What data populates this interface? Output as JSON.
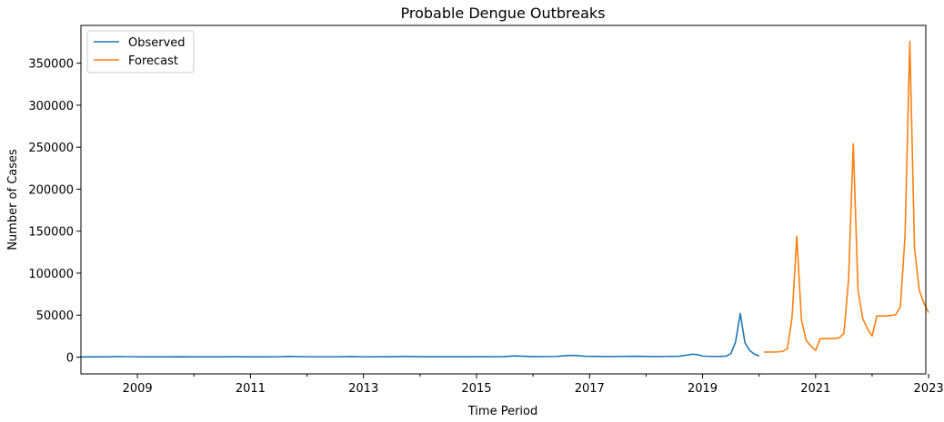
{
  "chart_data": {
    "type": "line",
    "title": "Probable Dengue Outbreaks",
    "xlabel": "Time Period",
    "ylabel": "Number of Cases",
    "xlim": [
      2008.0,
      2022.95
    ],
    "ylim": [
      -20000,
      395000
    ],
    "x_ticks": [
      2009,
      2011,
      2013,
      2015,
      2017,
      2019,
      2021,
      2023
    ],
    "x_minor_ticks": [
      2010,
      2012,
      2014,
      2016,
      2018,
      2020,
      2022
    ],
    "y_ticks": [
      0,
      50000,
      100000,
      150000,
      200000,
      250000,
      300000,
      350000
    ],
    "legend": {
      "position": "top-left"
    },
    "grid": false,
    "series": [
      {
        "name": "Observed",
        "color": "#1f77b4",
        "points": [
          [
            2008.0,
            200
          ],
          [
            2008.333,
            300
          ],
          [
            2008.5,
            400
          ],
          [
            2008.667,
            800
          ],
          [
            2008.917,
            400
          ],
          [
            2009.25,
            300
          ],
          [
            2009.5,
            300
          ],
          [
            2009.75,
            500
          ],
          [
            2010.0,
            300
          ],
          [
            2010.5,
            300
          ],
          [
            2010.75,
            500
          ],
          [
            2011.0,
            300
          ],
          [
            2011.5,
            400
          ],
          [
            2011.667,
            900
          ],
          [
            2012.0,
            400
          ],
          [
            2012.5,
            400
          ],
          [
            2012.75,
            700
          ],
          [
            2013.0,
            400
          ],
          [
            2013.5,
            500
          ],
          [
            2013.75,
            900
          ],
          [
            2014.0,
            500
          ],
          [
            2014.5,
            500
          ],
          [
            2015.0,
            500
          ],
          [
            2015.5,
            600
          ],
          [
            2015.667,
            1400
          ],
          [
            2016.0,
            600
          ],
          [
            2016.417,
            800
          ],
          [
            2016.583,
            1800
          ],
          [
            2016.75,
            2000
          ],
          [
            2016.917,
            1000
          ],
          [
            2017.25,
            700
          ],
          [
            2017.5,
            800
          ],
          [
            2017.833,
            1000
          ],
          [
            2018.083,
            700
          ],
          [
            2018.333,
            800
          ],
          [
            2018.583,
            1000
          ],
          [
            2018.833,
            3500
          ],
          [
            2018.917,
            2800
          ],
          [
            2019.0,
            1200
          ],
          [
            2019.167,
            800
          ],
          [
            2019.333,
            900
          ],
          [
            2019.417,
            1200
          ],
          [
            2019.5,
            4000
          ],
          [
            2019.583,
            18000
          ],
          [
            2019.667,
            52000
          ],
          [
            2019.75,
            17000
          ],
          [
            2019.833,
            8000
          ],
          [
            2019.917,
            3500
          ],
          [
            2020.0,
            1200
          ]
        ]
      },
      {
        "name": "Forecast",
        "color": "#ff7f0e",
        "points": [
          [
            2020.083,
            6000
          ],
          [
            2020.167,
            6000
          ],
          [
            2020.25,
            6000
          ],
          [
            2020.333,
            6200
          ],
          [
            2020.417,
            6800
          ],
          [
            2020.5,
            10000
          ],
          [
            2020.583,
            47000
          ],
          [
            2020.667,
            144000
          ],
          [
            2020.75,
            44000
          ],
          [
            2020.833,
            20000
          ],
          [
            2020.917,
            13000
          ],
          [
            2021.0,
            8000
          ],
          [
            2021.083,
            22000
          ],
          [
            2021.167,
            22000
          ],
          [
            2021.25,
            22000
          ],
          [
            2021.333,
            22200
          ],
          [
            2021.417,
            23000
          ],
          [
            2021.5,
            28000
          ],
          [
            2021.583,
            92000
          ],
          [
            2021.667,
            254000
          ],
          [
            2021.75,
            80000
          ],
          [
            2021.833,
            46000
          ],
          [
            2021.917,
            34000
          ],
          [
            2022.0,
            25000
          ],
          [
            2022.083,
            49000
          ],
          [
            2022.167,
            49000
          ],
          [
            2022.25,
            49000
          ],
          [
            2022.333,
            49500
          ],
          [
            2022.417,
            50500
          ],
          [
            2022.5,
            60000
          ],
          [
            2022.583,
            145000
          ],
          [
            2022.667,
            376000
          ],
          [
            2022.75,
            130000
          ],
          [
            2022.833,
            80000
          ],
          [
            2022.917,
            64000
          ],
          [
            2023.0,
            53000
          ]
        ]
      }
    ]
  }
}
